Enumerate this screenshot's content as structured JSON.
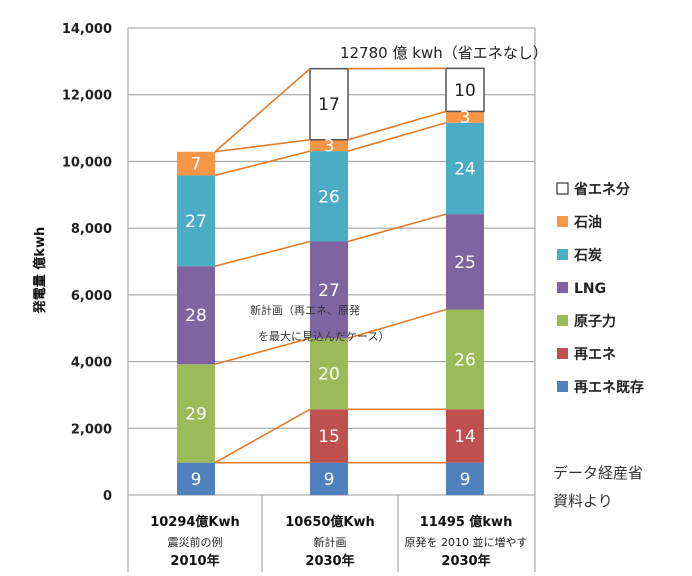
{
  "chart_data": {
    "type": "bar",
    "stacked": true,
    "ylabel": "発電量 億kwh",
    "ylim": [
      0,
      14000
    ],
    "yticks": [
      "0",
      "2,000",
      "4,000",
      "6,000",
      "8,000",
      "10,000",
      "12,000",
      "14,000"
    ],
    "ytick_values": [
      0,
      2000,
      4000,
      6000,
      8000,
      10000,
      12000,
      14000
    ],
    "grid": true,
    "categories": [
      {
        "total": "10294億Kwh",
        "sub": "震災前の例",
        "year": "2010年"
      },
      {
        "total": "10650億Kwh",
        "sub": "新計画",
        "year": "2030年"
      },
      {
        "total": "11495 億kwh",
        "sub": "原発を 2010 並に増やす",
        "year": "2030年"
      }
    ],
    "series": [
      {
        "name": "再エネ既存",
        "color": "#4f81bd",
        "values": [
          970,
          970,
          970
        ],
        "labels": [
          "9",
          "9",
          "9"
        ]
      },
      {
        "name": "再エネ",
        "color": "#c0504d",
        "values": [
          0,
          1600,
          1600
        ],
        "labels": [
          "",
          "15",
          "14"
        ]
      },
      {
        "name": "原子力",
        "color": "#9bbb59",
        "values": [
          2950,
          2130,
          2990
        ],
        "labels": [
          "29",
          "20",
          "26"
        ]
      },
      {
        "name": "LNG",
        "color": "#8064a2",
        "values": [
          2940,
          2900,
          2860
        ],
        "labels": [
          "28",
          "27",
          "25"
        ]
      },
      {
        "name": "石炭",
        "color": "#4bacc6",
        "values": [
          2720,
          2710,
          2740
        ],
        "labels": [
          "27",
          "26",
          "24"
        ]
      },
      {
        "name": "石油",
        "color": "#f79646",
        "values": [
          710,
          340,
          340
        ],
        "labels": [
          "7",
          "3",
          "3"
        ]
      },
      {
        "name": "省エネ分",
        "color": "#ffffff",
        "values": [
          0,
          2130,
          1290
        ],
        "labels": [
          "",
          "17",
          "10"
        ]
      }
    ],
    "legend_position": "right",
    "legend_order": [
      "省エネ分",
      "石油",
      "石炭",
      "LNG",
      "原子力",
      "再エネ",
      "再エネ既存"
    ],
    "top_label": "12780 億 kwh（省エネなし）",
    "annotation_lines": [
      "新計画（再エネ、原発",
      "を最大に見込んだケース）"
    ],
    "source_note": [
      "データ経産省",
      "資料より"
    ],
    "connector_color": "#e07b2a"
  }
}
